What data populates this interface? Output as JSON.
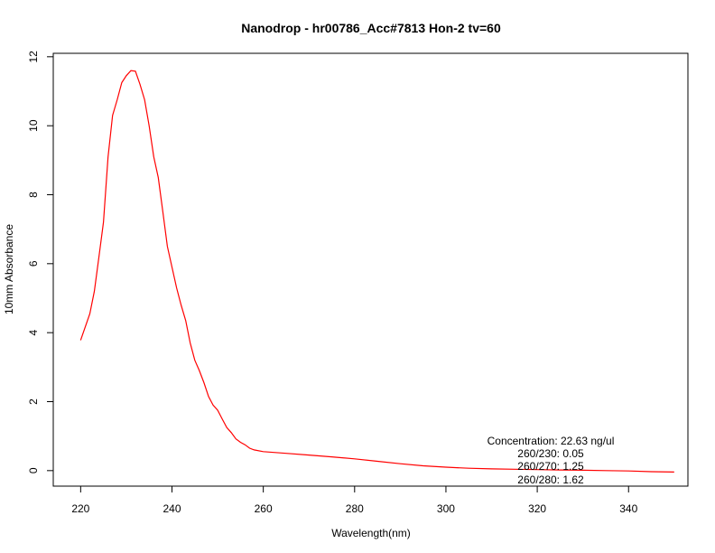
{
  "chart_data": {
    "type": "line",
    "title": "Nanodrop - hr00786_Acc#7813 Hon-2 tv=60",
    "xlabel": "Wavelength(nm)",
    "ylabel": "10mm Absorbance",
    "xlim": [
      214,
      353
    ],
    "ylim": [
      -0.45,
      12.1
    ],
    "x_ticks": [
      220,
      240,
      260,
      280,
      300,
      320,
      340
    ],
    "y_ticks": [
      0,
      2,
      4,
      6,
      8,
      10,
      12
    ],
    "grid": false,
    "series": [
      {
        "color": "#ff0000",
        "x": [
          220,
          222,
          223,
          224,
          225,
          226,
          227,
          228,
          229,
          230,
          231,
          232,
          233,
          234,
          235,
          236,
          237,
          238,
          239,
          240,
          241,
          242,
          243,
          244,
          245,
          246,
          247,
          248,
          249,
          250,
          251,
          252,
          253,
          254,
          255,
          256,
          257,
          258,
          260,
          265,
          270,
          275,
          280,
          285,
          290,
          295,
          300,
          305,
          310,
          315,
          320,
          325,
          330,
          335,
          340,
          345,
          350
        ],
        "y": [
          3.78,
          4.55,
          5.2,
          6.2,
          7.2,
          9.1,
          10.3,
          10.75,
          11.25,
          11.45,
          11.6,
          11.58,
          11.2,
          10.75,
          10.0,
          9.1,
          8.5,
          7.5,
          6.5,
          5.9,
          5.3,
          4.8,
          4.35,
          3.7,
          3.2,
          2.9,
          2.55,
          2.15,
          1.9,
          1.75,
          1.5,
          1.25,
          1.1,
          0.92,
          0.82,
          0.75,
          0.65,
          0.6,
          0.55,
          0.5,
          0.45,
          0.4,
          0.34,
          0.27,
          0.2,
          0.14,
          0.1,
          0.07,
          0.05,
          0.04,
          0.03,
          0.02,
          0.01,
          0.0,
          -0.01,
          -0.03,
          -0.04
        ]
      }
    ],
    "annotations": [
      "Concentration: 22.63 ng/ul",
      "260/230: 0.05",
      "260/270: 1.25",
      "260/280: 1.62"
    ]
  }
}
